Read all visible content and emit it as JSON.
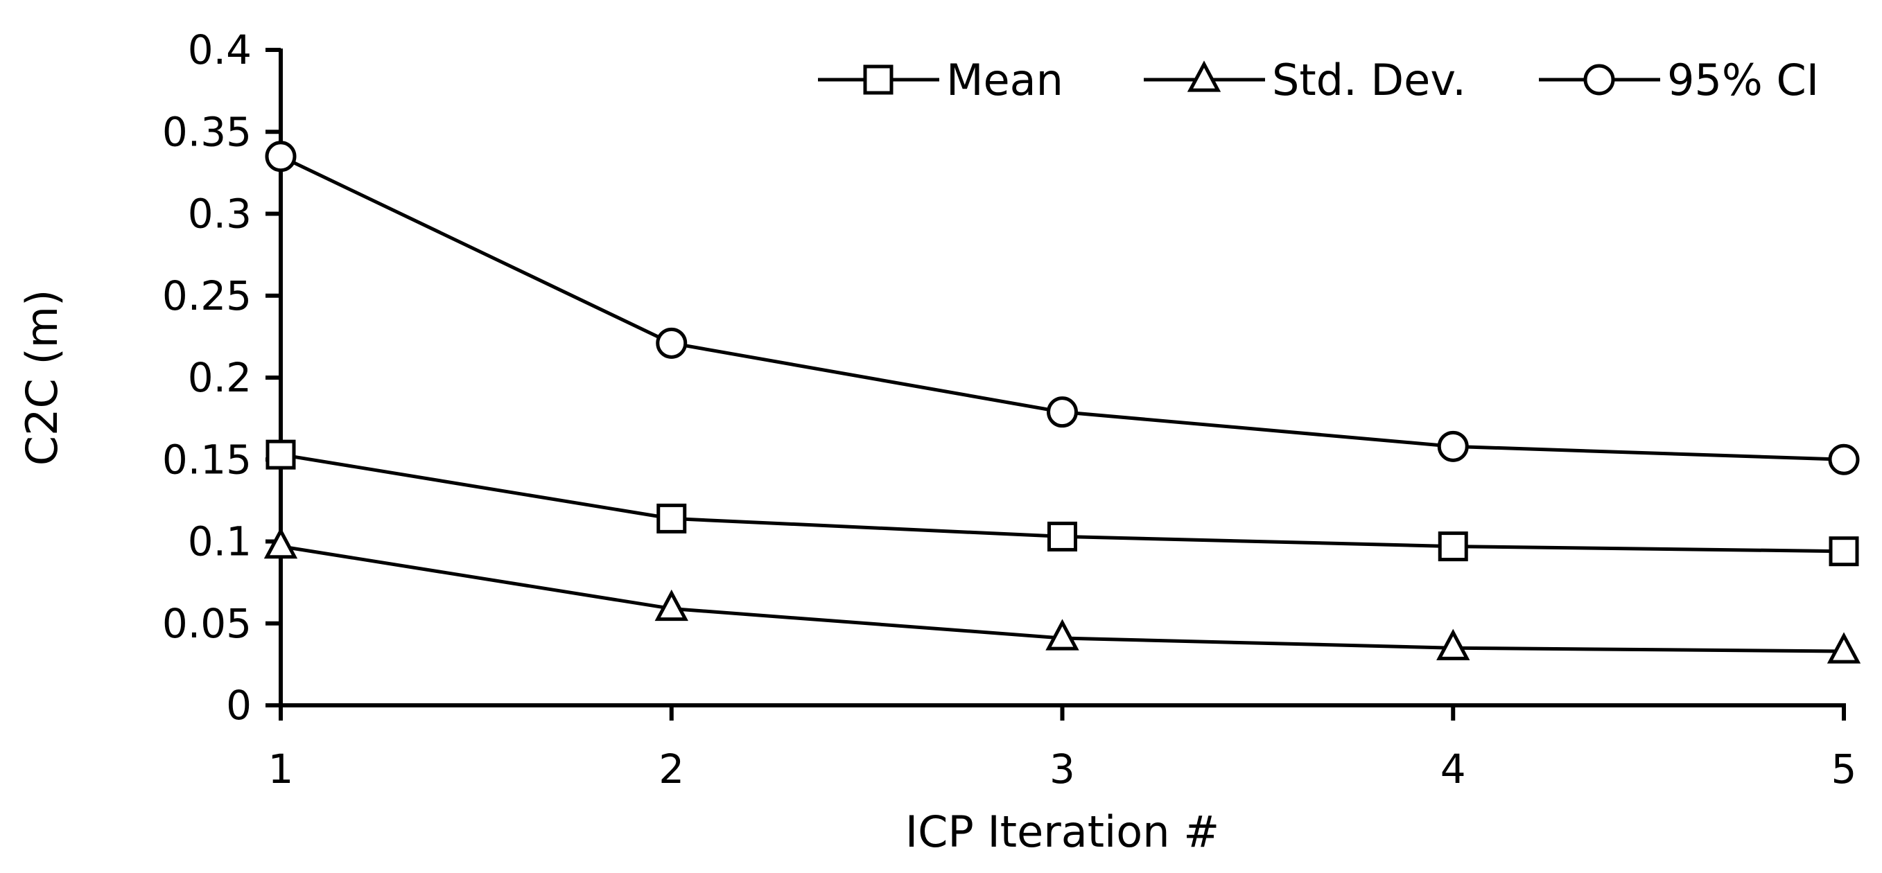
{
  "chart_data": {
    "type": "line",
    "title": "",
    "xlabel": "ICP Iteration #",
    "ylabel": "C2C (m)",
    "x": [
      1,
      2,
      3,
      4,
      5
    ],
    "x_tick_labels": [
      "1",
      "2",
      "3",
      "4",
      "5"
    ],
    "ylim": [
      0,
      0.4
    ],
    "y_ticks": [
      0,
      0.05,
      0.1,
      0.15,
      0.2,
      0.25,
      0.3,
      0.35,
      0.4
    ],
    "y_tick_labels": [
      "0",
      "0.05",
      "0.1",
      "0.15",
      "0.2",
      "0.25",
      "0.3",
      "0.35",
      "0.4"
    ],
    "grid": false,
    "legend_position": "top-right",
    "series": [
      {
        "name": "Mean",
        "marker": "square",
        "values": [
          0.153,
          0.114,
          0.103,
          0.097,
          0.094
        ]
      },
      {
        "name": "Std. Dev.",
        "marker": "triangle",
        "values": [
          0.097,
          0.059,
          0.041,
          0.035,
          0.033
        ]
      },
      {
        "name": "95% CI",
        "marker": "circle",
        "values": [
          0.335,
          0.221,
          0.179,
          0.158,
          0.15
        ]
      }
    ],
    "colors": {
      "line": "#000000",
      "marker_fill": "#ffffff"
    }
  }
}
